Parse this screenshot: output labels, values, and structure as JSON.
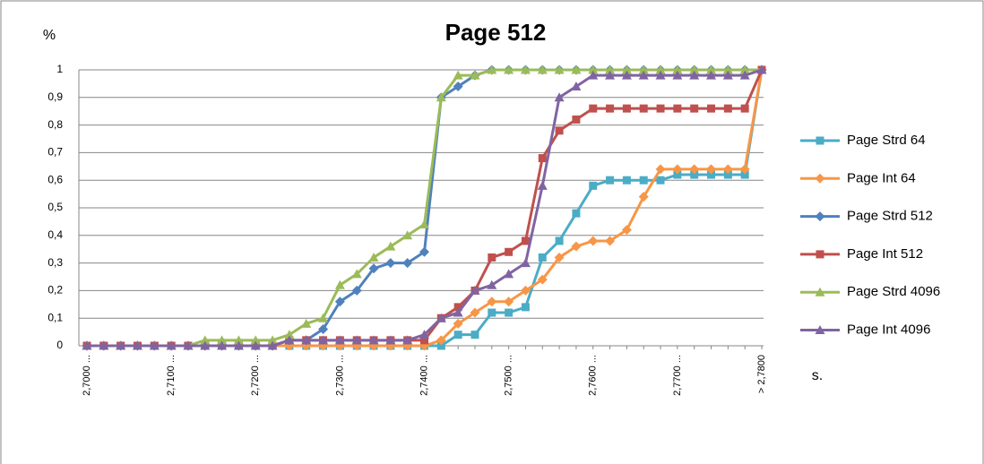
{
  "chart_data": {
    "type": "line",
    "title": "Page 512",
    "ylabel": "%",
    "xlabel": "s.",
    "categories": [
      "2,7000 ...",
      null,
      null,
      null,
      null,
      "2,7100 ...",
      null,
      null,
      null,
      null,
      "2,7200 ...",
      null,
      null,
      null,
      null,
      "2,7300 ...",
      null,
      null,
      null,
      null,
      "2,7400 ...",
      null,
      null,
      null,
      null,
      "2,7500 ...",
      null,
      null,
      null,
      null,
      "2,7600 ...",
      null,
      null,
      null,
      null,
      "2,7700 ...",
      null,
      null,
      null,
      null,
      "> 2,7800"
    ],
    "ylim": [
      0,
      1
    ],
    "yticks": [
      0,
      {
        "value": 0.1,
        "label": "0,1"
      },
      {
        "value": 0.2,
        "label": "0,2"
      },
      {
        "value": 0.3,
        "label": "0,3"
      },
      {
        "value": 0.4,
        "label": "0,4"
      },
      {
        "value": 0.5,
        "label": "0,5"
      },
      {
        "value": 0.6,
        "label": "0,6"
      },
      {
        "value": 0.7,
        "label": "0,7"
      },
      {
        "value": 0.8,
        "label": "0,8"
      },
      {
        "value": 0.9,
        "label": "0,9"
      },
      1
    ],
    "grid": true,
    "legend": "right",
    "series": [
      {
        "name": "Page Strd 64",
        "color": "#4bacc6",
        "marker": "square",
        "values": [
          0,
          0,
          0,
          0,
          0,
          0,
          0,
          0,
          0,
          0,
          0,
          0,
          0,
          0,
          0,
          0,
          0,
          0,
          0,
          0,
          0,
          0,
          0.04,
          0.04,
          0.12,
          0.12,
          0.14,
          0.32,
          0.38,
          0.48,
          0.58,
          0.6,
          0.6,
          0.6,
          0.6,
          0.62,
          0.62,
          0.62,
          0.62,
          0.62,
          1
        ]
      },
      {
        "name": "Page Int 64",
        "color": "#f79646",
        "marker": "diamond",
        "values": [
          0,
          0,
          0,
          0,
          0,
          0,
          0,
          0,
          0,
          0,
          0,
          0,
          0,
          0,
          0,
          0,
          0,
          0,
          0,
          0,
          0,
          0.02,
          0.08,
          0.12,
          0.16,
          0.16,
          0.2,
          0.24,
          0.32,
          0.36,
          0.38,
          0.38,
          0.42,
          0.54,
          0.64,
          0.64,
          0.64,
          0.64,
          0.64,
          0.64,
          1
        ]
      },
      {
        "name": "Page Strd 512",
        "color": "#4f81bd",
        "marker": "diamond",
        "values": [
          0,
          0,
          0,
          0,
          0,
          0,
          0,
          0,
          0,
          0,
          0,
          0,
          0.02,
          0.02,
          0.06,
          0.16,
          0.2,
          0.28,
          0.3,
          0.3,
          0.34,
          0.9,
          0.94,
          0.98,
          1,
          1,
          1,
          1,
          1,
          1,
          1,
          1,
          1,
          1,
          1,
          1,
          1,
          1,
          1,
          1,
          1
        ]
      },
      {
        "name": "Page Int 512",
        "color": "#c0504d",
        "marker": "square",
        "values": [
          0,
          0,
          0,
          0,
          0,
          0,
          0,
          0,
          0,
          0,
          0,
          0,
          0.02,
          0.02,
          0.02,
          0.02,
          0.02,
          0.02,
          0.02,
          0.02,
          0.02,
          0.1,
          0.14,
          0.2,
          0.32,
          0.34,
          0.38,
          0.68,
          0.78,
          0.82,
          0.86,
          0.86,
          0.86,
          0.86,
          0.86,
          0.86,
          0.86,
          0.86,
          0.86,
          0.86,
          1
        ]
      },
      {
        "name": "Page Strd 4096",
        "color": "#9bbb59",
        "marker": "triangle",
        "values": [
          0,
          0,
          0,
          0,
          0,
          0,
          0,
          0.02,
          0.02,
          0.02,
          0.02,
          0.02,
          0.04,
          0.08,
          0.1,
          0.22,
          0.26,
          0.32,
          0.36,
          0.4,
          0.44,
          0.9,
          0.98,
          0.98,
          1,
          1,
          1,
          1,
          1,
          1,
          1,
          1,
          1,
          1,
          1,
          1,
          1,
          1,
          1,
          1,
          1
        ]
      },
      {
        "name": "Page Int 4096",
        "color": "#8064a2",
        "marker": "triangle",
        "values": [
          0,
          0,
          0,
          0,
          0,
          0,
          0,
          0,
          0,
          0,
          0,
          0,
          0.02,
          0.02,
          0.02,
          0.02,
          0.02,
          0.02,
          0.02,
          0.02,
          0.04,
          0.1,
          0.12,
          0.2,
          0.22,
          0.26,
          0.3,
          0.58,
          0.9,
          0.94,
          0.98,
          0.98,
          0.98,
          0.98,
          0.98,
          0.98,
          0.98,
          0.98,
          0.98,
          0.98,
          1
        ]
      }
    ]
  }
}
